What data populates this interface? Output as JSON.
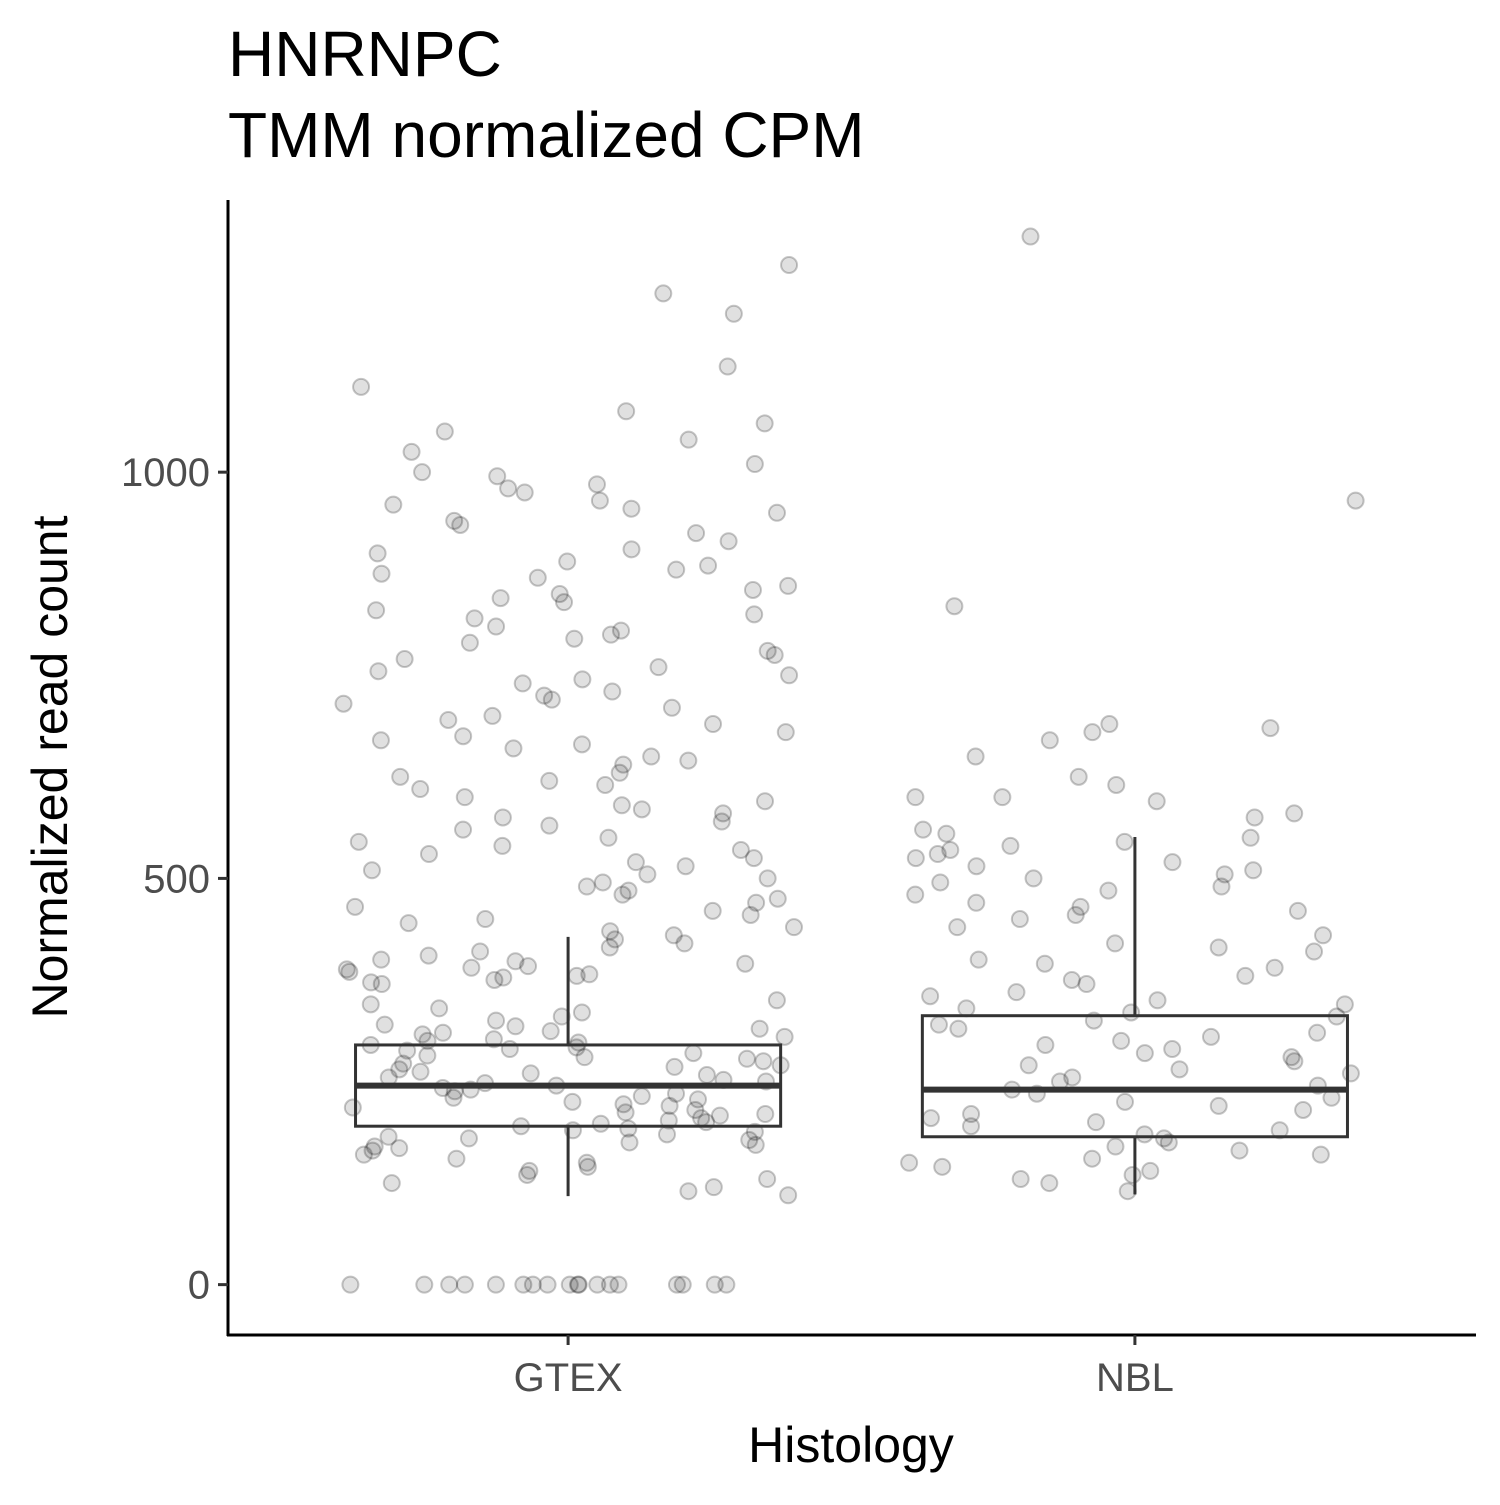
{
  "chart_data": {
    "type": "box",
    "title": "HNRNPC",
    "subtitle": "TMM normalized CPM",
    "x_label": "Histology",
    "y_label": "Normalized read count",
    "categories": [
      "GTEX",
      "NBL"
    ],
    "ylim": [
      -62,
      1335
    ],
    "yticks": [
      0,
      500,
      1000
    ],
    "boxes": [
      {
        "min": 109,
        "q1": 195,
        "median": 245,
        "q3": 295,
        "max": 428
      },
      {
        "min": 111,
        "q1": 182,
        "median": 240,
        "q3": 331,
        "max": 551
      }
    ],
    "points": [
      [
        0,
        0,
        0,
        0,
        0,
        0,
        0,
        0,
        0,
        0,
        0,
        0,
        0,
        0,
        0,
        0,
        0,
        0,
        1255,
        1220,
        1195,
        1130,
        1105,
        1075,
        1060,
        1050,
        1040,
        1025,
        1010,
        1000,
        995,
        985,
        980,
        975,
        965,
        960,
        955,
        950,
        940,
        935,
        925,
        915,
        905,
        900,
        890,
        885,
        880,
        875,
        870,
        860,
        855,
        850,
        845,
        840,
        830,
        825,
        820,
        810,
        805,
        800,
        795,
        790,
        780,
        775,
        770,
        760,
        755,
        750,
        745,
        740,
        730,
        725,
        720,
        715,
        710,
        700,
        695,
        690,
        680,
        675,
        670,
        665,
        660,
        650,
        645,
        640,
        630,
        625,
        620,
        615,
        610,
        600,
        595,
        590,
        585,
        580,
        575,
        570,
        565,
        560,
        550,
        545,
        540,
        535,
        530,
        525,
        520,
        515,
        510,
        505,
        500,
        495,
        490,
        485,
        480,
        475,
        470,
        465,
        460,
        455,
        450,
        445,
        440,
        435,
        430,
        425,
        420,
        415,
        410,
        405,
        400,
        398,
        395,
        392,
        390,
        388,
        385,
        382,
        380,
        378,
        375,
        372,
        370,
        350,
        345,
        340,
        335,
        330,
        325,
        320,
        318,
        315,
        312,
        310,
        308,
        305,
        302,
        300,
        298,
        295,
        292,
        290,
        288,
        285,
        282,
        280,
        278,
        275,
        272,
        270,
        268,
        265,
        262,
        260,
        258,
        255,
        252,
        250,
        248,
        245,
        242,
        240,
        238,
        235,
        232,
        230,
        228,
        225,
        222,
        220,
        218,
        215,
        212,
        210,
        208,
        205,
        202,
        200,
        198,
        195,
        192,
        190,
        188,
        185,
        182,
        180,
        178,
        175,
        172,
        170,
        168,
        165,
        160,
        155,
        150,
        145,
        140,
        135,
        130,
        125,
        120,
        115,
        110
      ],
      [
        1290,
        965,
        835,
        690,
        685,
        680,
        670,
        650,
        625,
        615,
        600,
        600,
        595,
        580,
        575,
        560,
        555,
        550,
        545,
        540,
        535,
        530,
        525,
        520,
        515,
        510,
        505,
        500,
        495,
        490,
        485,
        480,
        470,
        465,
        460,
        455,
        450,
        440,
        430,
        420,
        415,
        410,
        400,
        395,
        390,
        380,
        375,
        370,
        360,
        355,
        350,
        345,
        340,
        335,
        330,
        325,
        320,
        315,
        310,
        305,
        300,
        295,
        290,
        285,
        280,
        275,
        270,
        265,
        260,
        255,
        250,
        245,
        240,
        235,
        230,
        225,
        220,
        215,
        210,
        205,
        200,
        195,
        190,
        185,
        180,
        175,
        170,
        165,
        160,
        155,
        150,
        145,
        140,
        135,
        130,
        125,
        115
      ]
    ]
  }
}
